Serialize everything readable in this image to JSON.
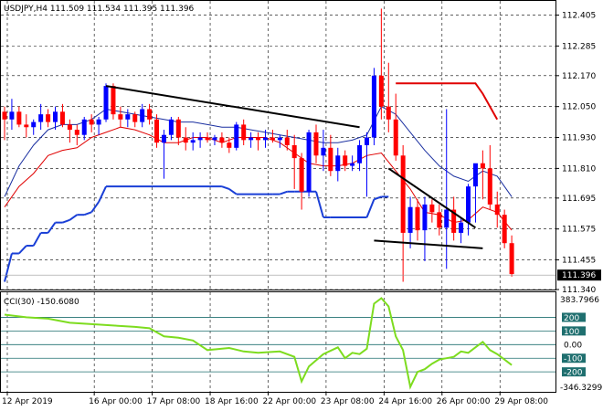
{
  "chart_data": {
    "type": "candlestick",
    "title": "USDJPY,H4  111.509 111.534 111.395 111.396",
    "price_axis": {
      "ylim": [
        111.34,
        112.46
      ],
      "ticks": [
        "112.405",
        "112.285",
        "112.170",
        "112.050",
        "111.930",
        "111.810",
        "111.695",
        "111.575",
        "111.455",
        "111.340"
      ],
      "current_price_label": "111.396",
      "current_price": 111.396
    },
    "time_axis": {
      "labels": [
        "12 Apr 2019",
        "16 Apr 00:00",
        "17 Apr 08:00",
        "18 Apr 16:00",
        "22 Apr 00:00",
        "23 Apr 08:00",
        "24 Apr 16:00",
        "26 Apr 00:00",
        "29 Apr 08:00"
      ],
      "label_bar_index": [
        0,
        12,
        20,
        28,
        36,
        44,
        52,
        60,
        68
      ]
    },
    "colors": {
      "up": "#0000ff",
      "down": "#ff0000",
      "doji": "#00aa00",
      "trendline": "#000000",
      "blue_line": "#1a3fd6",
      "red_line": "#e00000",
      "cci": "#7ddc1f",
      "cci_level": "#1f6f6f"
    },
    "candles": [
      [
        112.03,
        112.05,
        111.92,
        112.0
      ],
      [
        112.0,
        112.08,
        111.96,
        112.03
      ],
      [
        112.03,
        112.05,
        111.97,
        111.98
      ],
      [
        111.98,
        112.02,
        111.93,
        111.97
      ],
      [
        111.97,
        112.0,
        111.94,
        111.99
      ],
      [
        111.99,
        112.06,
        111.96,
        112.02
      ],
      [
        112.02,
        112.04,
        111.97,
        111.99
      ],
      [
        111.99,
        112.05,
        111.96,
        112.03
      ],
      [
        112.03,
        112.06,
        111.97,
        111.98
      ],
      [
        111.98,
        112.0,
        111.91,
        111.96
      ],
      [
        111.96,
        111.98,
        111.9,
        111.94
      ],
      [
        111.94,
        112.01,
        111.92,
        112.0
      ],
      [
        112.0,
        112.02,
        111.95,
        111.98
      ],
      [
        111.98,
        112.01,
        111.94,
        112.0
      ],
      [
        112.0,
        112.14,
        111.99,
        112.13
      ],
      [
        112.13,
        112.14,
        112.0,
        112.02
      ],
      [
        112.02,
        112.05,
        111.97,
        112.0
      ],
      [
        112.0,
        112.04,
        111.97,
        112.02
      ],
      [
        112.02,
        112.03,
        111.97,
        111.99
      ],
      [
        111.99,
        112.06,
        111.97,
        112.04
      ],
      [
        112.04,
        112.06,
        111.98,
        112.0
      ],
      [
        112.0,
        112.02,
        111.89,
        111.91
      ],
      [
        111.91,
        111.96,
        111.77,
        111.94
      ],
      [
        111.94,
        112.01,
        111.92,
        112.0
      ],
      [
        112.0,
        112.01,
        111.9,
        111.93
      ],
      [
        111.93,
        111.97,
        111.88,
        111.91
      ],
      [
        111.91,
        111.95,
        111.88,
        111.92
      ],
      [
        111.92,
        111.95,
        111.89,
        111.93
      ],
      [
        111.93,
        111.95,
        111.91,
        111.92
      ],
      [
        111.92,
        111.94,
        111.9,
        111.93
      ],
      [
        111.93,
        111.95,
        111.89,
        111.91
      ],
      [
        111.91,
        111.93,
        111.87,
        111.89
      ],
      [
        111.89,
        111.99,
        111.88,
        111.98
      ],
      [
        111.98,
        112.0,
        111.9,
        111.92
      ],
      [
        111.92,
        111.95,
        111.89,
        111.93
      ],
      [
        111.93,
        111.95,
        111.88,
        111.92
      ],
      [
        111.92,
        111.96,
        111.89,
        111.93
      ],
      [
        111.93,
        111.96,
        111.91,
        111.92
      ],
      [
        111.92,
        111.94,
        111.89,
        111.93
      ],
      [
        111.93,
        111.96,
        111.88,
        111.9
      ],
      [
        111.9,
        111.94,
        111.73,
        111.85
      ],
      [
        111.85,
        111.87,
        111.65,
        111.72
      ],
      [
        111.72,
        111.96,
        111.7,
        111.95
      ],
      [
        111.95,
        111.98,
        111.83,
        111.86
      ],
      [
        111.86,
        111.96,
        111.8,
        111.89
      ],
      [
        111.89,
        111.94,
        111.78,
        111.8
      ],
      [
        111.8,
        111.89,
        111.76,
        111.86
      ],
      [
        111.86,
        111.88,
        111.8,
        111.82
      ],
      [
        111.82,
        111.86,
        111.8,
        111.83
      ],
      [
        111.83,
        111.92,
        111.8,
        111.9
      ],
      [
        111.9,
        111.95,
        111.7,
        111.93
      ],
      [
        111.93,
        112.2,
        111.9,
        112.17
      ],
      [
        112.17,
        112.43,
        112.0,
        112.05
      ],
      [
        112.05,
        112.22,
        111.95,
        112.0
      ],
      [
        112.0,
        112.1,
        111.84,
        111.86
      ],
      [
        111.86,
        111.9,
        111.37,
        111.56
      ],
      [
        111.56,
        111.7,
        111.5,
        111.66
      ],
      [
        111.66,
        111.69,
        111.53,
        111.57
      ],
      [
        111.57,
        111.7,
        111.45,
        111.67
      ],
      [
        111.67,
        111.69,
        111.6,
        111.64
      ],
      [
        111.64,
        111.67,
        111.55,
        111.58
      ],
      [
        111.58,
        112.04,
        111.42,
        111.65
      ],
      [
        111.65,
        111.7,
        111.53,
        111.56
      ],
      [
        111.56,
        111.62,
        111.52,
        111.6
      ],
      [
        111.6,
        111.75,
        111.55,
        111.74
      ],
      [
        111.74,
        111.82,
        111.6,
        111.83
      ],
      [
        111.83,
        111.88,
        111.69,
        111.81
      ],
      [
        111.81,
        111.9,
        111.65,
        111.67
      ],
      [
        111.67,
        111.72,
        111.58,
        111.63
      ],
      [
        111.63,
        111.65,
        111.5,
        111.52
      ],
      [
        111.52,
        111.55,
        111.39,
        111.4
      ]
    ],
    "blue_line": [
      [
        0,
        111.37
      ],
      [
        1,
        111.48
      ],
      [
        2,
        111.48
      ],
      [
        3,
        111.51
      ],
      [
        4,
        111.51
      ],
      [
        5,
        111.56
      ],
      [
        6,
        111.56
      ],
      [
        7,
        111.6
      ],
      [
        8,
        111.6
      ],
      [
        9,
        111.61
      ],
      [
        10,
        111.63
      ],
      [
        11,
        111.63
      ],
      [
        12,
        111.64
      ],
      [
        13,
        111.68
      ],
      [
        14,
        111.74
      ],
      [
        30,
        111.74
      ],
      [
        31,
        111.73
      ],
      [
        32,
        111.71
      ],
      [
        37,
        111.71
      ],
      [
        38,
        111.71
      ],
      [
        39,
        111.72
      ],
      [
        40,
        111.72
      ],
      [
        43,
        111.72
      ],
      [
        44,
        111.62
      ],
      [
        45,
        111.62
      ],
      [
        50,
        111.62
      ],
      [
        51,
        111.69
      ],
      [
        52,
        111.7
      ],
      [
        53,
        111.7
      ]
    ],
    "red_line": [
      [
        54,
        112.14
      ],
      [
        65,
        112.14
      ],
      [
        66,
        112.1
      ],
      [
        68,
        112.0
      ]
    ],
    "ma_fast": [
      [
        0,
        111.66
      ],
      [
        2,
        111.74
      ],
      [
        4,
        111.79
      ],
      [
        6,
        111.86
      ],
      [
        8,
        111.88
      ],
      [
        10,
        111.89
      ],
      [
        12,
        111.93
      ],
      [
        14,
        111.95
      ],
      [
        16,
        111.97
      ],
      [
        18,
        111.96
      ],
      [
        20,
        111.94
      ],
      [
        22,
        111.91
      ],
      [
        24,
        111.91
      ],
      [
        26,
        111.93
      ],
      [
        28,
        111.93
      ],
      [
        30,
        111.91
      ],
      [
        32,
        111.93
      ],
      [
        34,
        111.93
      ],
      [
        36,
        111.93
      ],
      [
        38,
        111.91
      ],
      [
        40,
        111.87
      ],
      [
        42,
        111.83
      ],
      [
        44,
        111.82
      ],
      [
        46,
        111.82
      ],
      [
        48,
        111.83
      ],
      [
        50,
        111.86
      ],
      [
        52,
        111.87
      ],
      [
        54,
        111.8
      ],
      [
        56,
        111.73
      ],
      [
        58,
        111.64
      ],
      [
        60,
        111.63
      ],
      [
        62,
        111.6
      ],
      [
        64,
        111.61
      ],
      [
        66,
        111.66
      ],
      [
        68,
        111.64
      ],
      [
        70,
        111.57
      ]
    ],
    "ma_slow": [
      [
        0,
        111.7
      ],
      [
        2,
        111.82
      ],
      [
        4,
        111.9
      ],
      [
        6,
        111.96
      ],
      [
        8,
        111.98
      ],
      [
        10,
        111.98
      ],
      [
        12,
        112.0
      ],
      [
        14,
        112.04
      ],
      [
        16,
        112.03
      ],
      [
        18,
        112.02
      ],
      [
        20,
        112.01
      ],
      [
        22,
        112.0
      ],
      [
        24,
        111.99
      ],
      [
        26,
        111.99
      ],
      [
        28,
        111.98
      ],
      [
        30,
        111.97
      ],
      [
        32,
        111.97
      ],
      [
        34,
        111.96
      ],
      [
        36,
        111.95
      ],
      [
        38,
        111.94
      ],
      [
        40,
        111.93
      ],
      [
        42,
        111.92
      ],
      [
        44,
        111.91
      ],
      [
        46,
        111.91
      ],
      [
        48,
        111.92
      ],
      [
        50,
        111.94
      ],
      [
        52,
        112.05
      ],
      [
        54,
        112.02
      ],
      [
        56,
        111.95
      ],
      [
        58,
        111.88
      ],
      [
        60,
        111.82
      ],
      [
        62,
        111.78
      ],
      [
        64,
        111.76
      ],
      [
        66,
        111.8
      ],
      [
        68,
        111.78
      ],
      [
        70,
        111.7
      ]
    ],
    "trendlines": [
      {
        "from": [
          14,
          112.13
        ],
        "to": [
          49,
          111.97
        ]
      },
      {
        "from": [
          53,
          111.81
        ],
        "to": [
          65,
          111.58
        ]
      },
      {
        "from": [
          51,
          111.53
        ],
        "to": [
          66,
          111.5
        ]
      }
    ],
    "cci": {
      "title": "CCI(30) -150.6080",
      "ylim": [
        -346.3299,
        383.7966
      ],
      "levels": [
        "200",
        "100",
        "0.00",
        "-100",
        "-200"
      ],
      "level_values": [
        200,
        100,
        0,
        -100,
        -200
      ],
      "max_label": "383.7966",
      "min_label": "-346.3299",
      "values": [
        [
          0,
          220
        ],
        [
          3,
          200
        ],
        [
          6,
          190
        ],
        [
          9,
          160
        ],
        [
          12,
          150
        ],
        [
          15,
          140
        ],
        [
          18,
          130
        ],
        [
          20,
          120
        ],
        [
          22,
          60
        ],
        [
          24,
          50
        ],
        [
          26,
          30
        ],
        [
          28,
          -40
        ],
        [
          31,
          -25
        ],
        [
          33,
          -50
        ],
        [
          35,
          -60
        ],
        [
          38,
          -50
        ],
        [
          40,
          -90
        ],
        [
          41,
          -270
        ],
        [
          42,
          -160
        ],
        [
          44,
          -70
        ],
        [
          46,
          -20
        ],
        [
          47,
          -100
        ],
        [
          48,
          -60
        ],
        [
          49,
          -70
        ],
        [
          50,
          -30
        ],
        [
          51,
          300
        ],
        [
          52,
          340
        ],
        [
          53,
          280
        ],
        [
          54,
          60
        ],
        [
          55,
          -40
        ],
        [
          56,
          -310
        ],
        [
          57,
          -200
        ],
        [
          58,
          -180
        ],
        [
          59,
          -140
        ],
        [
          60,
          -110
        ],
        [
          61,
          -100
        ],
        [
          62,
          -90
        ],
        [
          63,
          -50
        ],
        [
          64,
          -60
        ],
        [
          65,
          -20
        ],
        [
          66,
          20
        ],
        [
          67,
          -40
        ],
        [
          68,
          -70
        ],
        [
          69,
          -110
        ],
        [
          70,
          -150
        ]
      ]
    }
  }
}
